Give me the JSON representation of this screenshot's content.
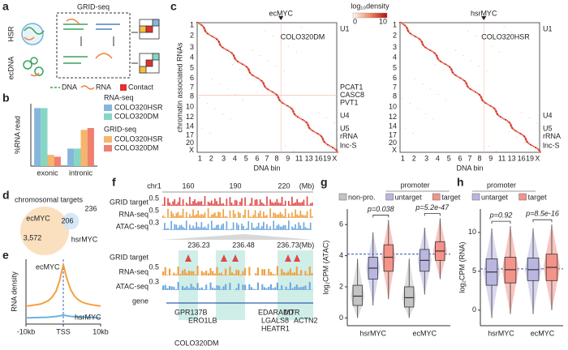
{
  "panel_labels": [
    "a",
    "b",
    "c",
    "d",
    "e",
    "f",
    "g",
    "h"
  ],
  "schematic": {
    "title": "GRID-seq",
    "samples": [
      "HSR",
      "ecDNA"
    ],
    "legend": [
      "DNA",
      "RNA",
      "Contact"
    ]
  },
  "heatmaps": {
    "colorbar": {
      "label": "log₁₀density",
      "min": 0,
      "max": 10
    },
    "y_label": "chromatin associated RNAs",
    "x_label": "DNA bin",
    "row_labels": [
      "1",
      "2",
      "3",
      "4",
      "5",
      "6",
      "7",
      "8",
      "10",
      "12",
      "14",
      "17",
      "20",
      "X"
    ],
    "col_labels": [
      "1",
      "2",
      "3",
      "4",
      "5",
      "6",
      "7",
      "8",
      "9",
      "11",
      "13",
      "16",
      "19",
      "X"
    ],
    "maps": [
      {
        "title": "ecMYC",
        "title_color": "#e03030",
        "sample": "COLO320DM",
        "rna_labels": [
          "U1",
          "U4",
          "U5",
          "rRNA",
          "lnc-S"
        ],
        "highlighted_labels": [
          "PCAT1",
          "CASC8",
          "PVT1"
        ],
        "highlight_color": "#e03030"
      },
      {
        "title": "hsrMYC",
        "title_color": "#222222",
        "sample": "COLO320HSR",
        "rna_labels": [
          "U1",
          "U4",
          "U5",
          "rRNA",
          "lnc-S"
        ],
        "highlighted_labels": [],
        "highlight_color": "#e03030"
      }
    ]
  },
  "tracks": {
    "chromosome": "chr1",
    "coords": [
      "160",
      "190",
      "220"
    ],
    "unit": "(Mb)",
    "track_names": [
      "GRID target",
      "RNA-seq",
      "ATAC-seq"
    ],
    "scales": [
      "0.5",
      "0.5",
      "0.3"
    ],
    "zoom_coords": [
      "236.23",
      "236.48",
      "236.73"
    ],
    "zoom_track_names": [
      "GRID target",
      "RNA-seq",
      "ATAC-seq",
      "gene"
    ],
    "zoom_scales": [
      "0.5",
      "0.3"
    ],
    "genes": [
      "GPR137B",
      "ERO1LB",
      "EDARADD",
      "LGALS8",
      "HEATR1",
      "MTR",
      "ACTN2"
    ],
    "sample": "COLO320DM"
  },
  "chart_data": [
    {
      "type": "bar",
      "y_label": "%RNA read",
      "categories": [
        "exonic",
        "intronic"
      ],
      "ylim": [
        0,
        100
      ],
      "groups": [
        {
          "name": "RNA-seq",
          "series": [
            {
              "name": "COLO320HSR",
              "color": "#86b6dc",
              "values": [
                93,
                28
              ]
            },
            {
              "name": "COLO320DM",
              "color": "#86d6c4",
              "values": [
                93,
                28
              ]
            }
          ]
        },
        {
          "name": "GRID-seq",
          "series": [
            {
              "name": "COLO320HSR",
              "color": "#f5b66c",
              "values": [
                18,
                58
              ]
            },
            {
              "name": "COLO320DM",
              "color": "#f07f70",
              "values": [
                15,
                61
              ]
            }
          ]
        }
      ]
    },
    {
      "type": "line",
      "y_label": "RNA density",
      "xlim": [
        -10,
        10
      ],
      "ylim": [
        0,
        3.6
      ],
      "xticks": [
        {
          "value": -10,
          "label": "-10kb"
        },
        {
          "value": 0,
          "label": "TSS"
        },
        {
          "value": 10,
          "label": "10kb"
        }
      ],
      "x": [
        -10,
        -9,
        -8,
        -7,
        -6,
        -5,
        -4,
        -3,
        -2,
        -1,
        0,
        1,
        2,
        3,
        4,
        5,
        6,
        7,
        8,
        9,
        10
      ],
      "series": [
        {
          "name": "ecMYC",
          "color": "#f5a040",
          "values": [
            1.0,
            1.02,
            1.05,
            1.08,
            1.12,
            1.2,
            1.3,
            1.5,
            1.8,
            2.4,
            3.3,
            2.5,
            1.9,
            1.55,
            1.35,
            1.22,
            1.15,
            1.1,
            1.06,
            1.03,
            1.0
          ]
        },
        {
          "name": "hsrMYC",
          "color": "#6fb3e0",
          "values": [
            0.35,
            0.35,
            0.36,
            0.36,
            0.37,
            0.37,
            0.38,
            0.4,
            0.42,
            0.45,
            0.5,
            0.46,
            0.43,
            0.41,
            0.39,
            0.38,
            0.37,
            0.37,
            0.36,
            0.36,
            0.35
          ]
        }
      ]
    },
    {
      "type": "venn",
      "title": "chromosomal targets",
      "sets": [
        "ecMYC",
        "hsrMYC"
      ],
      "set_colors": [
        "#fbe0bf",
        "#cfe3f5"
      ],
      "label_colors": [
        "#f5a040",
        "#4a90c8"
      ],
      "values": [
        3572,
        206,
        236
      ],
      "value_labels": [
        "3,572",
        "206",
        "236"
      ]
    },
    {
      "type": "box",
      "y_label": "log₂CPM (ATAC)",
      "categories": [
        "hsrMYC",
        "ecMYC"
      ],
      "legend_title": "promoter",
      "ylim": [
        -0.5,
        7
      ],
      "yticks": [
        0,
        2,
        4,
        6
      ],
      "reference": 4.1,
      "annotations": [
        "p=0.038",
        "p=5.2e-47"
      ],
      "series": [
        {
          "name": "non-pro.",
          "color": "#c4c4c4",
          "values": [
            [
              0,
              0.8,
              1.4,
              2.1,
              3.8
            ],
            [
              0,
              0.7,
              1.3,
              2.0,
              3.8
            ]
          ]
        },
        {
          "name": "untarget",
          "color": "#b9b6e0",
          "values": [
            [
              0.8,
              2.5,
              3.2,
              3.9,
              5.5
            ],
            [
              1.5,
              3.0,
              3.7,
              4.4,
              5.8
            ]
          ]
        },
        {
          "name": "target",
          "color": "#f3938a",
          "values": [
            [
              1.2,
              3.0,
              3.9,
              4.7,
              6.3
            ],
            [
              2.5,
              3.7,
              4.3,
              4.9,
              6.4
            ]
          ]
        }
      ]
    },
    {
      "type": "box",
      "y_label": "log₂CPM (RNA)",
      "categories": [
        "hsrMYC",
        "ecMYC"
      ],
      "legend_title": "promoter",
      "ylim": [
        -2,
        13
      ],
      "yticks": [
        0,
        5,
        10
      ],
      "reference": 5.3,
      "annotations": [
        "p=0.92",
        "p=8.5e-16"
      ],
      "series": [
        {
          "name": "untarget",
          "color": "#b9b6e0",
          "values": [
            [
              -1,
              3.2,
              4.9,
              6.6,
              10.5
            ],
            [
              -0.5,
              3.8,
              5.2,
              6.7,
              10.5
            ]
          ]
        },
        {
          "name": "target",
          "color": "#f3938a",
          "values": [
            [
              -0.5,
              3.5,
              5.2,
              6.8,
              10.8
            ],
            [
              0,
              3.8,
              5.5,
              7.2,
              11
            ]
          ]
        }
      ]
    }
  ]
}
